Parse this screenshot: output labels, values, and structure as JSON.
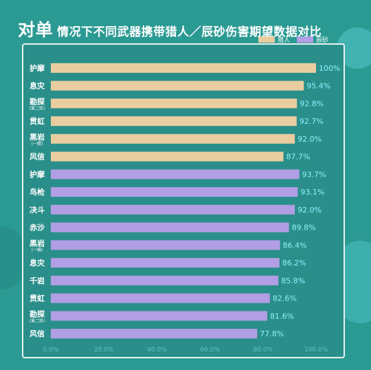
{
  "title": {
    "lead": "对单",
    "rest": "情况下不同武器携带猎人／辰砂伤害期望数据对比"
  },
  "colors": {
    "background": "#2b9a93",
    "panel": "#2a8f8a",
    "hunter": "#e9cda0",
    "cinnabar": "#b19ee4",
    "value_text": "#8ff0ff",
    "tick_text": "#5fc4c4",
    "label_text": "#ffffff"
  },
  "chart_data": {
    "type": "bar",
    "orientation": "horizontal",
    "xlim": [
      0,
      100
    ],
    "xticks": [
      "0.0%",
      "20.0%",
      "40.0%",
      "60.0%",
      "80.0%",
      "100.0%"
    ],
    "legend": {
      "position": "top-right"
    },
    "series": [
      {
        "name": "猎人",
        "color": "#e9cda0",
        "items": [
          {
            "label": "护摩",
            "sublabel": "",
            "value": 100,
            "display": "100%"
          },
          {
            "label": "息灾",
            "sublabel": "",
            "value": 95.4,
            "display": "95.4%"
          },
          {
            "label": "勘探",
            "sublabel": "(第二轮)",
            "value": 92.8,
            "display": "92.8%"
          },
          {
            "label": "贯虹",
            "sublabel": "",
            "value": 92.7,
            "display": "92.7%"
          },
          {
            "label": "黑岩",
            "sublabel": "(一精)",
            "value": 92.0,
            "display": "92.0%"
          },
          {
            "label": "风信",
            "sublabel": "",
            "value": 87.7,
            "display": "87.7%"
          }
        ]
      },
      {
        "name": "辰砂",
        "color": "#b19ee4",
        "items": [
          {
            "label": "护摩",
            "sublabel": "",
            "value": 93.7,
            "display": "93.7%"
          },
          {
            "label": "鸟枪",
            "sublabel": "",
            "value": 93.1,
            "display": "93.1%"
          },
          {
            "label": "决斗",
            "sublabel": "",
            "value": 92.0,
            "display": "92.0%"
          },
          {
            "label": "赤沙",
            "sublabel": "",
            "value": 89.8,
            "display": "89.8%"
          },
          {
            "label": "黑岩",
            "sublabel": "(一精)",
            "value": 86.4,
            "display": "86.4%"
          },
          {
            "label": "息灾",
            "sublabel": "",
            "value": 86.2,
            "display": "86.2%"
          },
          {
            "label": "千岩",
            "sublabel": "",
            "value": 85.8,
            "display": "85.8%"
          },
          {
            "label": "贯虹",
            "sublabel": "",
            "value": 82.6,
            "display": "82.6%"
          },
          {
            "label": "勘探",
            "sublabel": "(第二轮)",
            "value": 81.6,
            "display": "81.6%"
          },
          {
            "label": "风信",
            "sublabel": "",
            "value": 77.8,
            "display": "77.8%"
          }
        ]
      }
    ]
  }
}
